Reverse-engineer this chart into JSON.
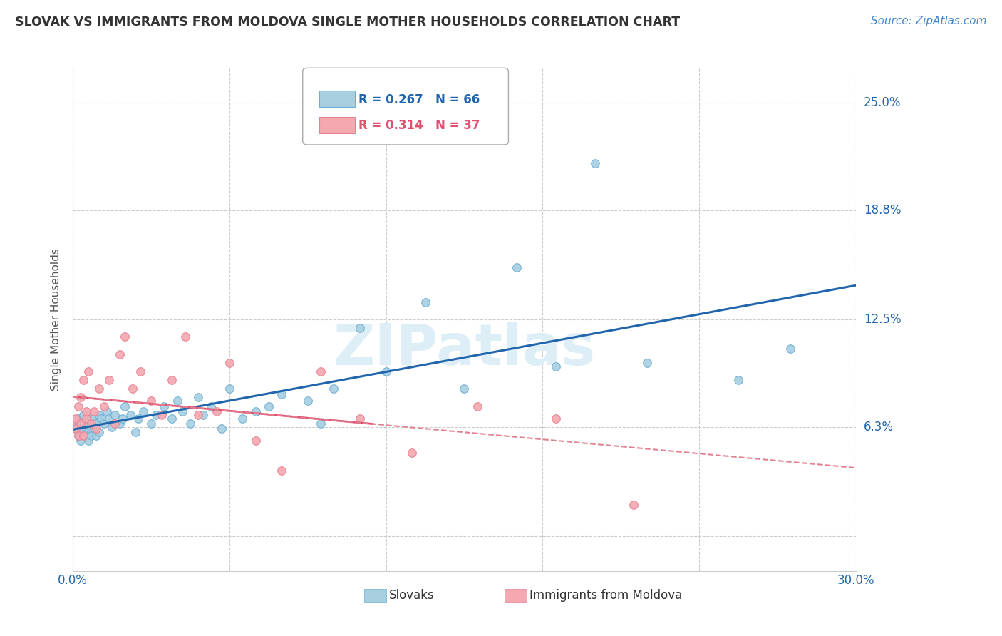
{
  "title": "SLOVAK VS IMMIGRANTS FROM MOLDOVA SINGLE MOTHER HOUSEHOLDS CORRELATION CHART",
  "source": "Source: ZipAtlas.com",
  "ylabel": "Single Mother Households",
  "xmin": 0.0,
  "xmax": 0.3,
  "ymin": -0.02,
  "ymax": 0.27,
  "ytick_vals": [
    0.0,
    0.063,
    0.125,
    0.188,
    0.25
  ],
  "ytick_labels": [
    "",
    "6.3%",
    "12.5%",
    "18.8%",
    "25.0%"
  ],
  "xtick_vals": [
    0.0,
    0.06,
    0.12,
    0.18,
    0.24,
    0.3
  ],
  "xtick_labels": [
    "0.0%",
    "",
    "",
    "",
    "",
    "30.0%"
  ],
  "color_slovak": "#a8cfe0",
  "color_moldova": "#f4a8b0",
  "color_slovak_edge": "#6baed6",
  "color_moldova_edge": "#e88090",
  "color_slovak_line": "#2166ac",
  "color_moldova_solid": "#e05070",
  "color_moldova_dashed": "#e08090",
  "color_grid": "#cccccc",
  "watermark_color": "#ddeef7",
  "slovaks_x": [
    0.001,
    0.001,
    0.002,
    0.002,
    0.003,
    0.003,
    0.004,
    0.004,
    0.005,
    0.005,
    0.005,
    0.006,
    0.006,
    0.006,
    0.007,
    0.007,
    0.007,
    0.008,
    0.008,
    0.008,
    0.009,
    0.009,
    0.01,
    0.01,
    0.011,
    0.012,
    0.013,
    0.014,
    0.015,
    0.016,
    0.018,
    0.019,
    0.02,
    0.022,
    0.024,
    0.025,
    0.027,
    0.03,
    0.032,
    0.035,
    0.038,
    0.04,
    0.042,
    0.045,
    0.048,
    0.05,
    0.053,
    0.057,
    0.06,
    0.065,
    0.07,
    0.075,
    0.08,
    0.09,
    0.095,
    0.1,
    0.11,
    0.12,
    0.135,
    0.15,
    0.17,
    0.185,
    0.2,
    0.22,
    0.255,
    0.275
  ],
  "slovaks_y": [
    0.065,
    0.062,
    0.068,
    0.058,
    0.06,
    0.055,
    0.063,
    0.07,
    0.058,
    0.062,
    0.065,
    0.06,
    0.055,
    0.068,
    0.06,
    0.063,
    0.058,
    0.065,
    0.068,
    0.062,
    0.058,
    0.065,
    0.06,
    0.07,
    0.068,
    0.065,
    0.072,
    0.068,
    0.063,
    0.07,
    0.065,
    0.068,
    0.075,
    0.07,
    0.06,
    0.068,
    0.072,
    0.065,
    0.07,
    0.075,
    0.068,
    0.078,
    0.072,
    0.065,
    0.08,
    0.07,
    0.075,
    0.062,
    0.085,
    0.068,
    0.072,
    0.075,
    0.082,
    0.078,
    0.065,
    0.085,
    0.12,
    0.095,
    0.135,
    0.085,
    0.155,
    0.098,
    0.215,
    0.1,
    0.09,
    0.108
  ],
  "moldova_x": [
    0.001,
    0.001,
    0.002,
    0.002,
    0.003,
    0.003,
    0.004,
    0.004,
    0.005,
    0.005,
    0.006,
    0.007,
    0.008,
    0.009,
    0.01,
    0.012,
    0.014,
    0.016,
    0.018,
    0.02,
    0.023,
    0.026,
    0.03,
    0.034,
    0.038,
    0.043,
    0.048,
    0.055,
    0.06,
    0.07,
    0.08,
    0.095,
    0.11,
    0.13,
    0.155,
    0.185,
    0.215
  ],
  "moldova_y": [
    0.062,
    0.068,
    0.058,
    0.075,
    0.065,
    0.08,
    0.058,
    0.09,
    0.068,
    0.072,
    0.095,
    0.065,
    0.072,
    0.062,
    0.085,
    0.075,
    0.09,
    0.065,
    0.105,
    0.115,
    0.085,
    0.095,
    0.078,
    0.07,
    0.09,
    0.115,
    0.07,
    0.072,
    0.1,
    0.055,
    0.038,
    0.095,
    0.068,
    0.048,
    0.075,
    0.068,
    0.018
  ]
}
